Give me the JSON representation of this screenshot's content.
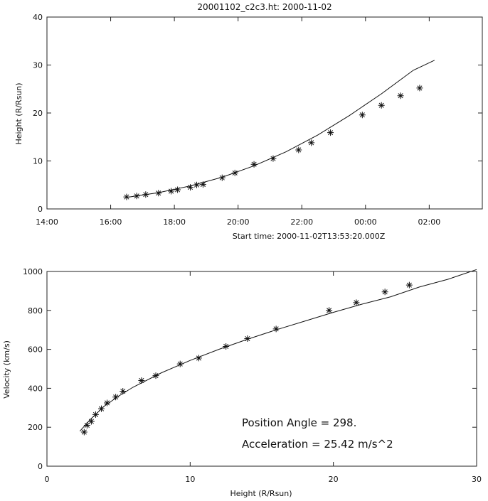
{
  "chart_data": [
    {
      "type": "scatter",
      "title": "20001102_c2c3.ht: 2000-11-02",
      "xlabel": "Start time: 2000-11-02T13:53:20.000Z",
      "ylabel": "Height (R/Rsun)",
      "xlim": [
        "14:00",
        "03:40"
      ],
      "ylim": [
        0,
        40
      ],
      "x_ticks": [
        "14:00",
        "16:00",
        "18:00",
        "20:00",
        "22:00",
        "00:00",
        "02:00"
      ],
      "y_ticks": [
        "0",
        "10",
        "20",
        "30",
        "40"
      ],
      "series": [
        {
          "marker": "asterisk",
          "x": [
            "16:30",
            "16:49",
            "17:06",
            "17:30",
            "17:54",
            "18:06",
            "18:30",
            "18:42",
            "18:54",
            "19:30",
            "19:54",
            "20:30",
            "21:06",
            "21:54",
            "22:18",
            "22:54",
            "23:54",
            "00:30",
            "01:06",
            "01:42"
          ],
          "y": [
            2.5,
            2.7,
            3.0,
            3.3,
            3.7,
            4.0,
            4.5,
            5.0,
            5.1,
            6.5,
            7.5,
            9.3,
            10.5,
            12.3,
            13.8,
            15.9,
            19.6,
            21.6,
            23.6,
            25.2
          ]
        },
        {
          "style": "line",
          "x": [
            "16:30",
            "17:30",
            "18:30",
            "19:30",
            "20:30",
            "21:30",
            "22:30",
            "23:30",
            "00:30",
            "01:30",
            "02:10"
          ],
          "y": [
            2.4,
            3.4,
            4.8,
            6.6,
            9.0,
            11.9,
            15.4,
            19.5,
            24.0,
            28.9,
            31.0
          ]
        }
      ]
    },
    {
      "type": "scatter",
      "xlabel": "Height (R/Rsun)",
      "ylabel": "Velocity (km/s)",
      "xlim": [
        0,
        30
      ],
      "ylim": [
        0,
        1000
      ],
      "x_ticks": [
        "0",
        "10",
        "20",
        "30"
      ],
      "y_ticks": [
        "0",
        "200",
        "400",
        "600",
        "800",
        "1000"
      ],
      "annotations": [
        "Position Angle =  298.",
        "Acceleration =  25.42 m/s^2"
      ],
      "series": [
        {
          "marker": "asterisk",
          "x": [
            2.6,
            2.8,
            3.1,
            3.4,
            3.8,
            4.2,
            4.8,
            5.3,
            6.6,
            7.6,
            9.3,
            10.6,
            12.5,
            14.0,
            16.0,
            19.7,
            21.6,
            23.6,
            25.3
          ],
          "y": [
            175,
            210,
            230,
            265,
            295,
            325,
            355,
            385,
            440,
            465,
            525,
            555,
            615,
            655,
            705,
            800,
            840,
            895,
            930
          ]
        },
        {
          "style": "line",
          "x": [
            2.3,
            3,
            4,
            5,
            6,
            8,
            10,
            12,
            14,
            16,
            18,
            20,
            22,
            24,
            26,
            28,
            30
          ],
          "y": [
            180,
            238,
            308,
            360,
            405,
            480,
            543,
            600,
            652,
            700,
            745,
            790,
            832,
            870,
            920,
            960,
            1010
          ]
        }
      ]
    }
  ]
}
